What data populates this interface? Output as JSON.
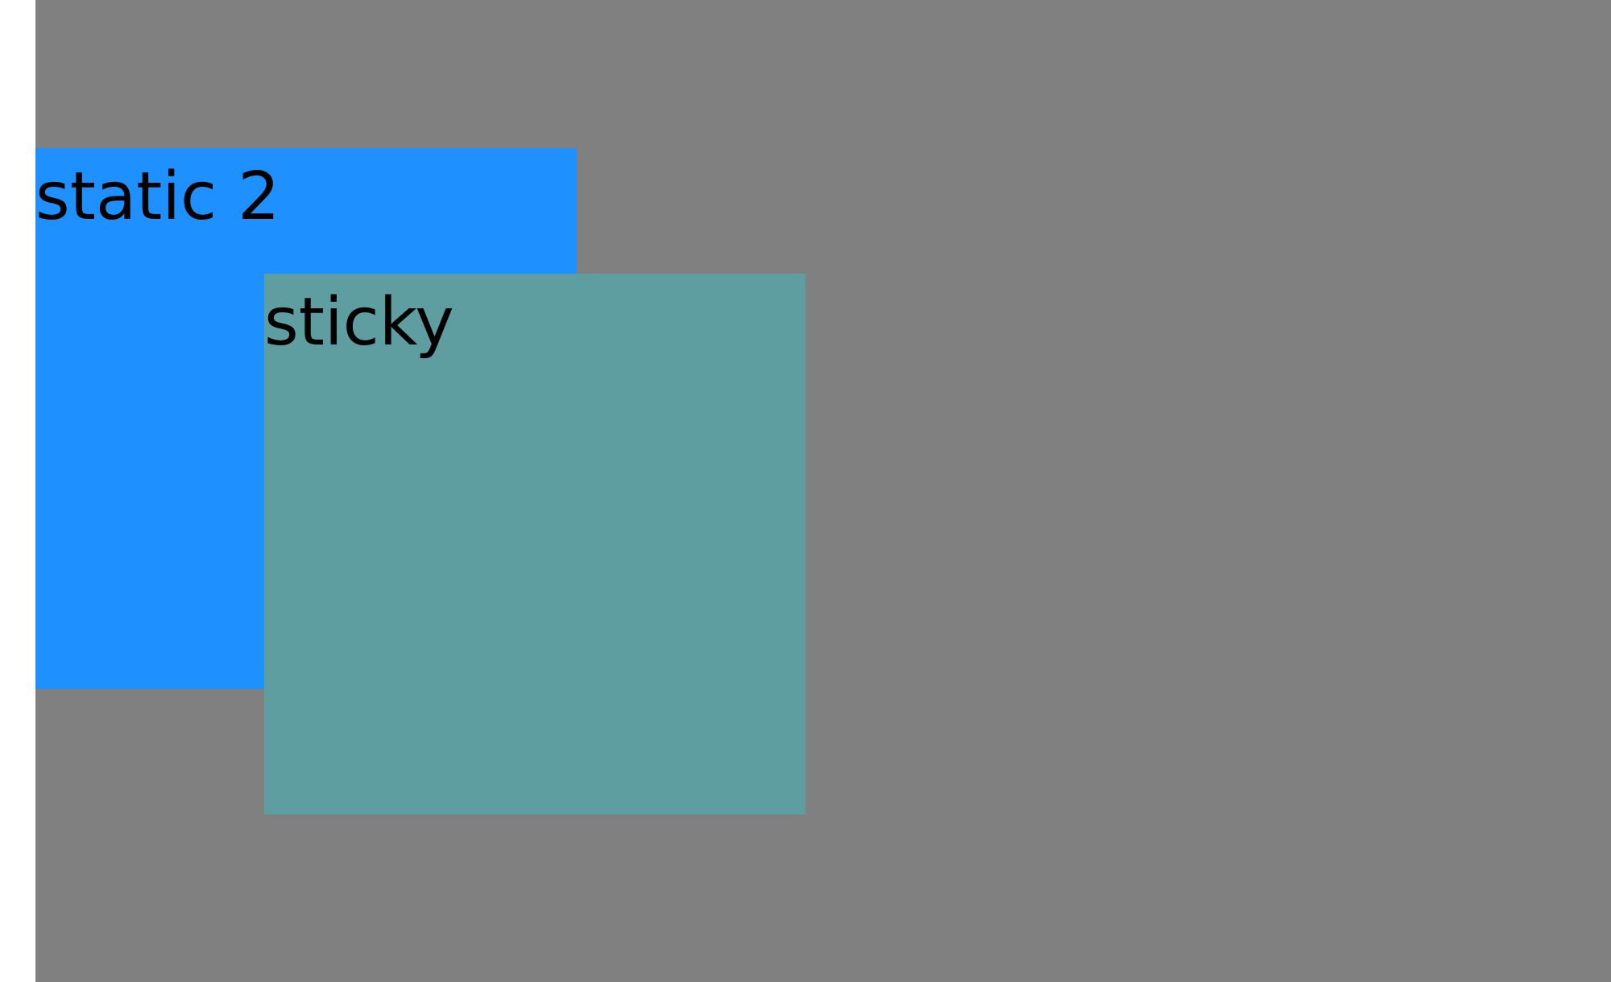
{
  "boxes": {
    "static_box": {
      "label": "static 2",
      "color": "#1e90ff"
    },
    "sticky_box": {
      "label": "sticky",
      "color": "#5f9ea0"
    }
  },
  "colors": {
    "container_background": "#808080",
    "page_background": "#ffffff"
  }
}
